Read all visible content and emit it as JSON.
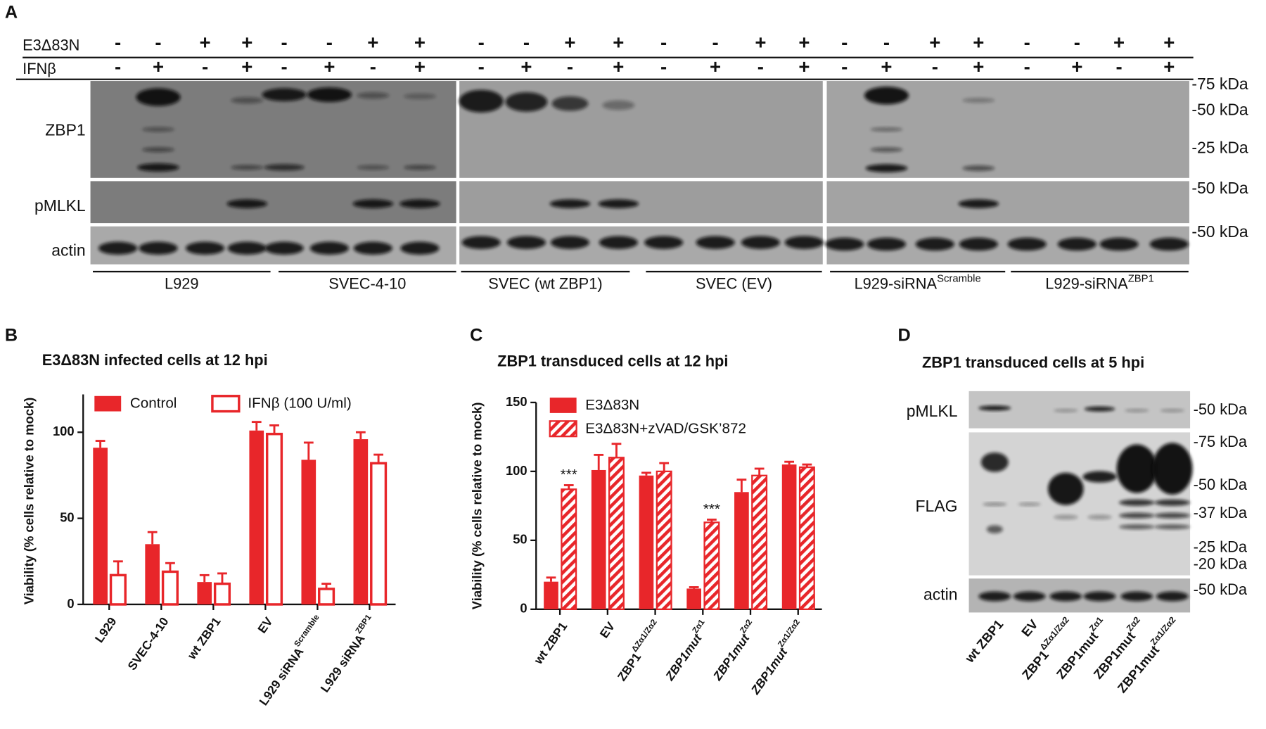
{
  "figure": {
    "A": {
      "letter": "A",
      "row_labels": [
        "E3Δ83N",
        "IFNβ"
      ],
      "e3": [
        "-",
        "-",
        "+",
        "+",
        "-",
        "-",
        "+",
        "+",
        "-",
        "-",
        "+",
        "+",
        "-",
        "-",
        "+",
        "+",
        "-",
        "-",
        "+",
        "+",
        "-",
        "-",
        "+",
        "+"
      ],
      "ifn": [
        "-",
        "+",
        "-",
        "+",
        "-",
        "+",
        "-",
        "+",
        "-",
        "+",
        "-",
        "+",
        "-",
        "+",
        "-",
        "+",
        "-",
        "+",
        "-",
        "+",
        "-",
        "+",
        "-",
        "+"
      ],
      "blot_labels": [
        "ZBP1",
        "pMLKL",
        "actin"
      ],
      "markers": [
        "-75 kDa",
        "-50 kDa",
        "-25 kDa",
        "-50 kDa",
        "-50 kDa"
      ],
      "groups": [
        {
          "text": "L929"
        },
        {
          "text": "SVEC-4-10"
        },
        {
          "text": "SVEC (wt ZBP1)"
        },
        {
          "text": "SVEC (EV)"
        },
        {
          "text": "L929-siRNA",
          "sup": "Scramble"
        },
        {
          "text": "L929-siRNA",
          "sup": "ZBP1"
        }
      ]
    },
    "D": {
      "letter": "D",
      "title": "ZBP1 transduced cells at 5 hpi",
      "blot_labels": [
        "pMLKL",
        "FLAG",
        "actin"
      ],
      "markers": [
        "-50 kDa",
        "-75 kDa",
        "-50 kDa",
        "-37 kDa",
        "-25 kDa",
        "-20 kDa",
        "-50 kDa"
      ],
      "lanes": [
        {
          "text": "wt ZBP1"
        },
        {
          "text": "EV"
        },
        {
          "text": "ZBP1",
          "sup": "ΔZα1/Zα2"
        },
        {
          "text": "ZBP1mut",
          "sup": "Zα1"
        },
        {
          "text": "ZBP1mut",
          "sup": "Zα2"
        },
        {
          "text": "ZBP1mut",
          "sup": "Zα1/Zα2"
        }
      ]
    }
  },
  "chart_data": [
    {
      "type": "bar",
      "panel_letter": "B",
      "title": "E3Δ83N infected cells at 12 hpi",
      "y_label": "Viability (% cells relative to mock)",
      "categories": [
        "L929",
        "SVEC-4-10",
        "wt ZBP1",
        "EV",
        "L929 siRNA",
        "L929 siRNA"
      ],
      "category_superscripts": [
        null,
        null,
        null,
        null,
        "Scramble",
        "ZBP1"
      ],
      "series": [
        {
          "name": "Control",
          "color": "#e8262a",
          "style": "solid",
          "values": [
            91,
            35,
            13,
            101,
            84,
            96
          ],
          "errors": [
            4,
            7,
            4,
            5,
            10,
            4
          ]
        },
        {
          "name": "IFNβ (100 U/ml)",
          "color": "#e8262a",
          "style": "outline",
          "values": [
            17,
            19,
            12,
            99,
            9,
            82
          ],
          "errors": [
            8,
            5,
            6,
            5,
            3,
            5
          ]
        }
      ],
      "ylim": [
        0,
        122
      ],
      "yticks": [
        0,
        50,
        100
      ]
    },
    {
      "type": "bar",
      "panel_letter": "C",
      "title": "ZBP1 transduced cells at 12 hpi",
      "y_label": "Viability (% cells relative to mock)",
      "categories": [
        "wt ZBP1",
        "EV",
        "ZBP1",
        "ZBP1mut",
        "ZBP1mut",
        "ZBP1mut"
      ],
      "category_superscripts": [
        null,
        null,
        "ΔZα1/Zα2",
        "Zα1",
        "Zα2",
        "Zα1/Zα2"
      ],
      "series": [
        {
          "name": "E3Δ83N",
          "color": "#e8262a",
          "style": "solid",
          "values": [
            20,
            101,
            97,
            15,
            85,
            105
          ],
          "errors": [
            3,
            11,
            2,
            1,
            9,
            2
          ]
        },
        {
          "name": "E3Δ83N+zVAD/GSK’872",
          "color": "#e8262a",
          "style": "hatched",
          "values": [
            87,
            110,
            100,
            63,
            97,
            103
          ],
          "errors": [
            3,
            10,
            6,
            2,
            5,
            2
          ]
        }
      ],
      "annotations": [
        {
          "text": "***",
          "category": "wt ZBP1"
        },
        {
          "text": "***",
          "category": 3
        }
      ],
      "ylim": [
        0,
        150
      ],
      "yticks": [
        0,
        50,
        100,
        150
      ]
    }
  ]
}
